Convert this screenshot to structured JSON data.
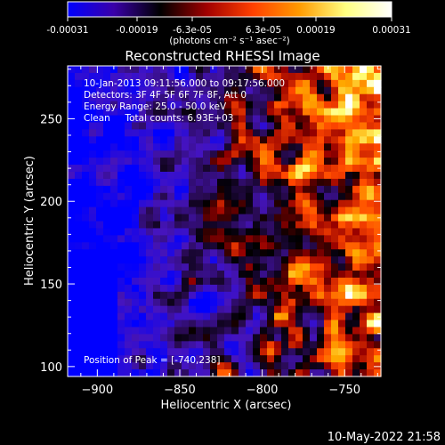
{
  "colorbar": {
    "ticks": [
      "-0.00031",
      "-0.00019",
      "-6.3e-05",
      "6.3e-05",
      "0.00019",
      "0.00031"
    ],
    "unit_label": "(photons cm⁻² s⁻¹ asec⁻²)",
    "stops": [
      "#0000ff",
      "#3a00a8",
      "#000000",
      "#a00000",
      "#ff4000",
      "#ff9a00",
      "#ffff80",
      "#ffffff"
    ]
  },
  "annotations": {
    "time_range": "10-Jan-2013 09:11:56.000 to 09:17:56.000",
    "detectors": "Detectors: 3F 4F 5F 6F 7F 8F, Att 0",
    "energy_range": "Energy Range: 25.0 - 50.0 keV",
    "clean_counts": "Clean     Total counts: 6.93E+03",
    "peak_position": "Position of Peak = [-740,238]"
  },
  "footer": {
    "date": "10-May-2022 21:58"
  },
  "chart_data": {
    "type": "heatmap",
    "title": "Reconstructed RHESSI Image",
    "xlabel": "Heliocentric X (arcsec)",
    "ylabel": "Heliocentric Y (arcsec)",
    "xlim": [
      -918,
      -728
    ],
    "ylim": [
      94,
      282
    ],
    "xticks": [
      -900,
      -850,
      -800,
      -750
    ],
    "yticks": [
      100,
      150,
      200,
      250
    ],
    "xtick_labels": [
      "−900",
      "−850",
      "−800",
      "−750"
    ],
    "ytick_labels": [
      "100",
      "150",
      "200",
      "250"
    ],
    "vmin": -0.00031,
    "vmax": 0.00031,
    "peak": [
      -740,
      238
    ]
  }
}
